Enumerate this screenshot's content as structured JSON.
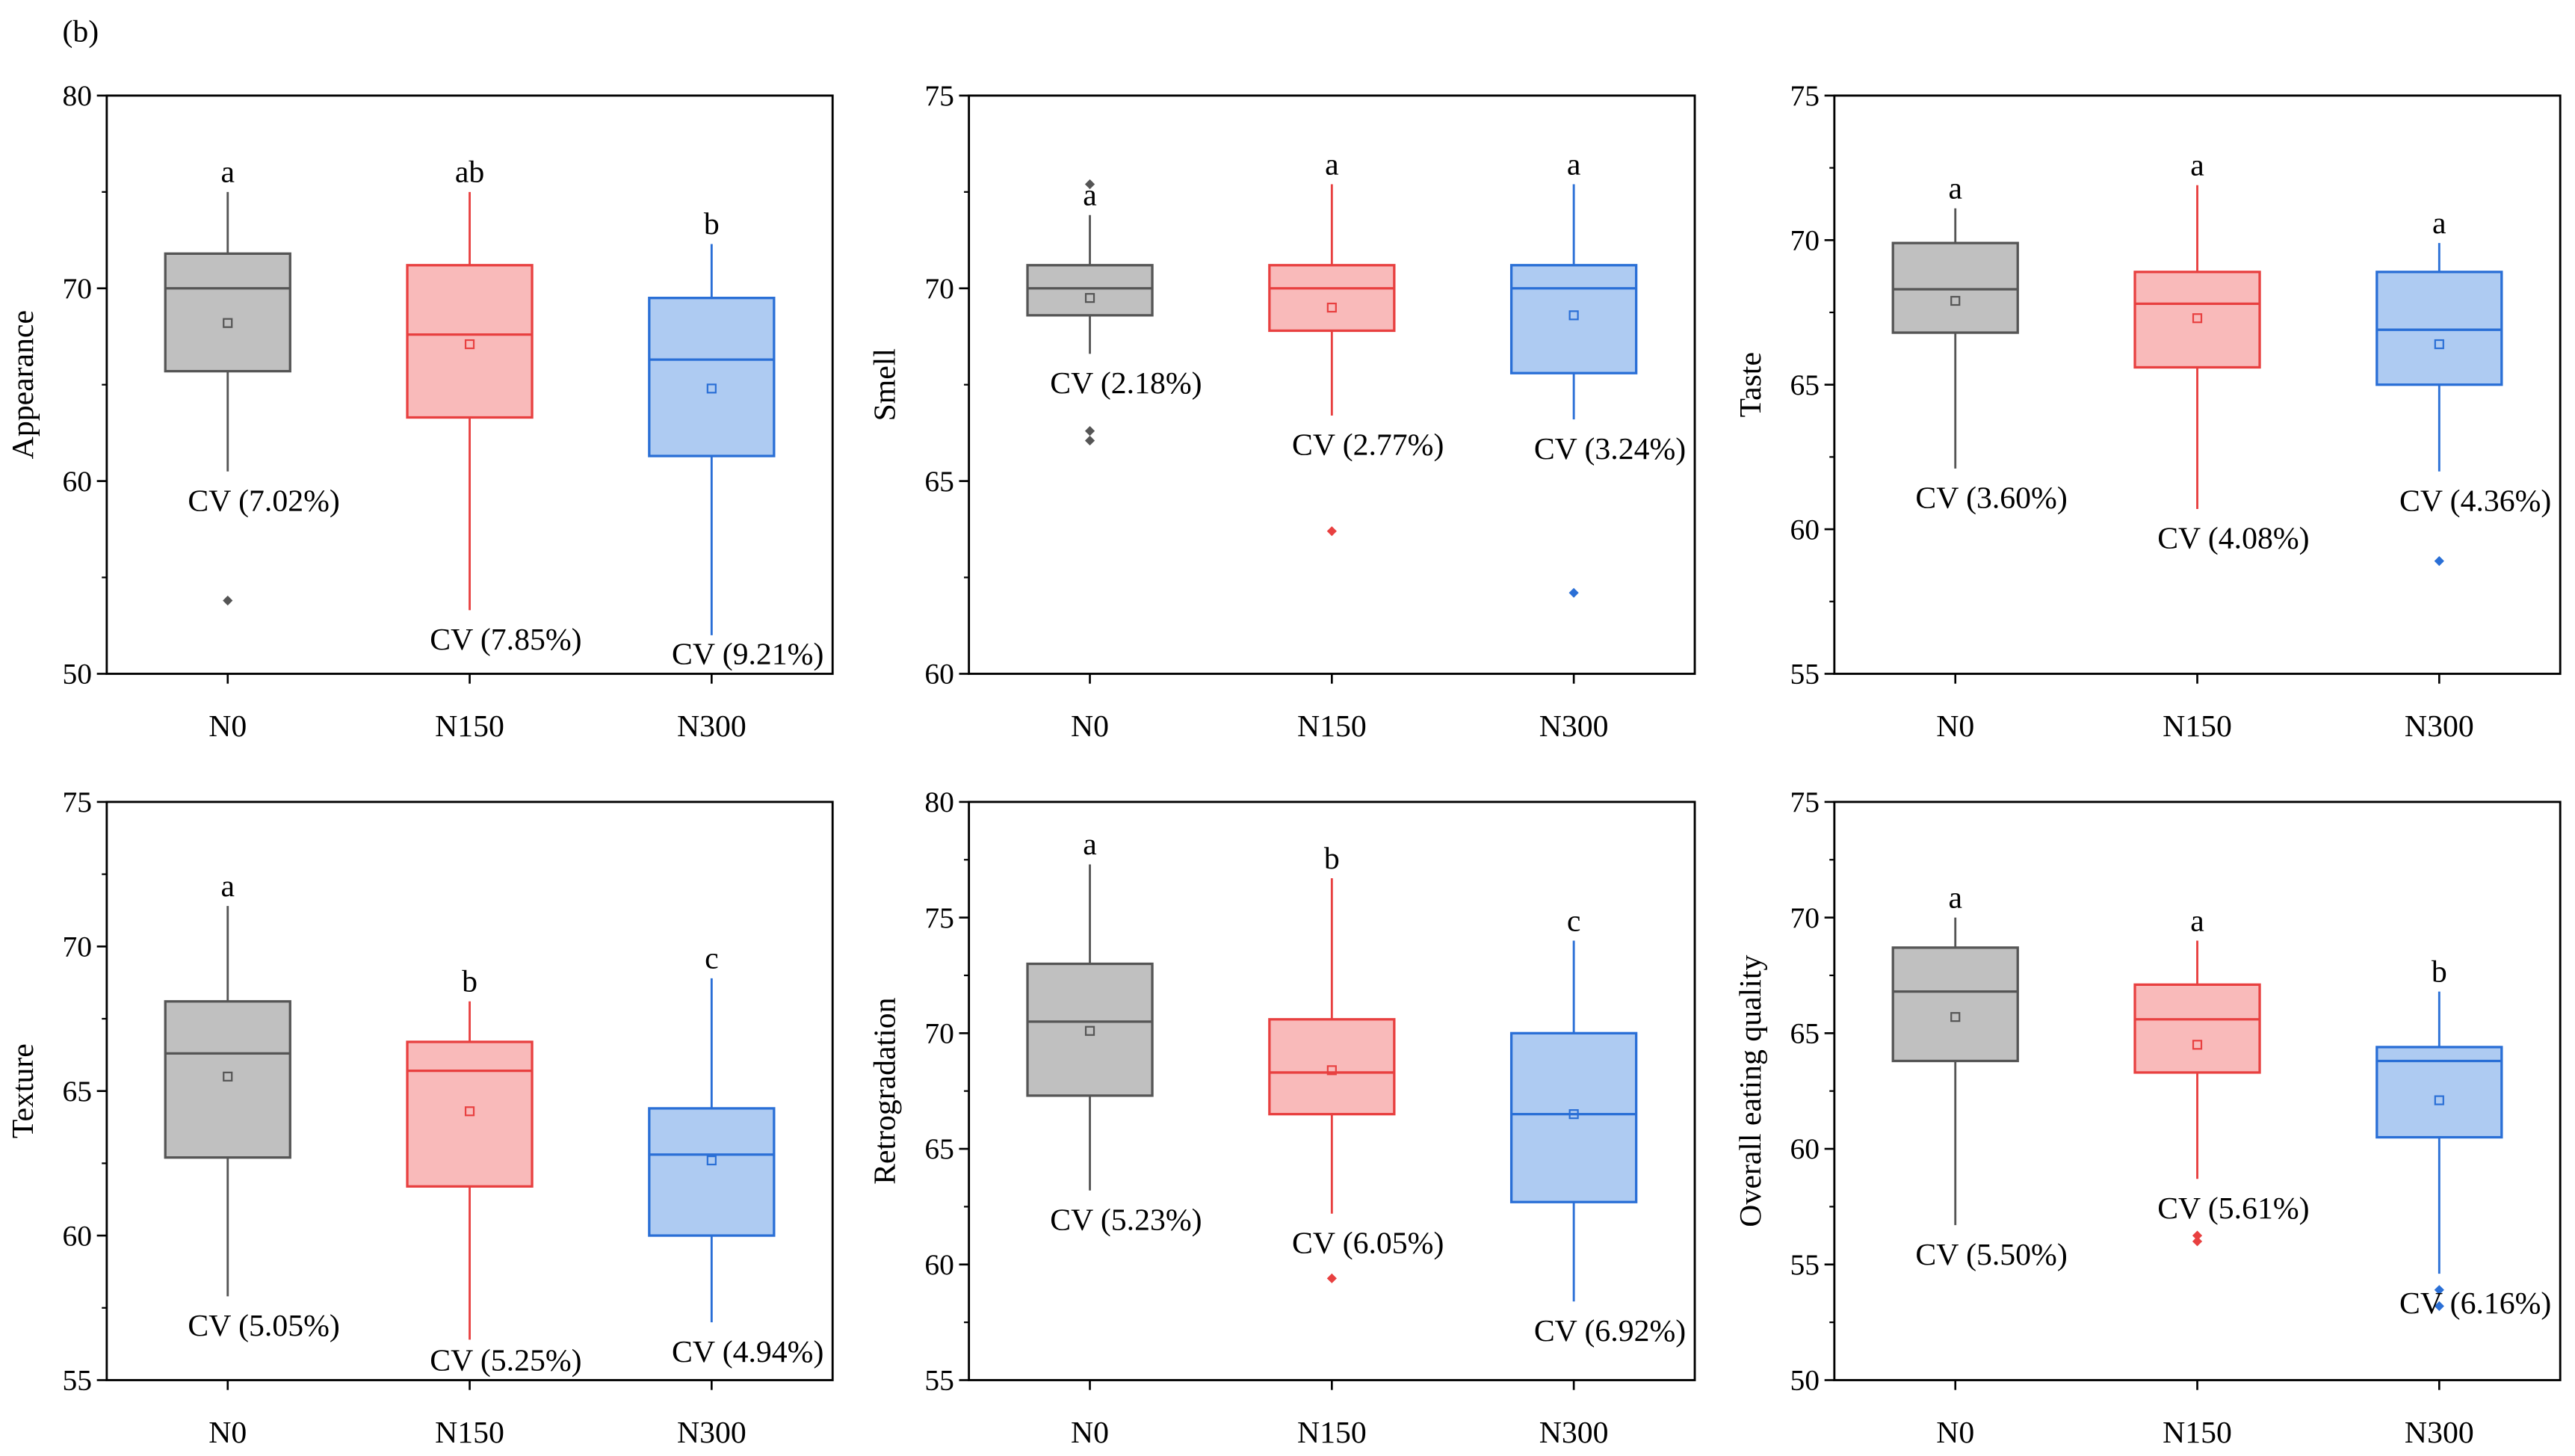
{
  "figure_label": "(b)",
  "colors": {
    "N0": {
      "fill": "#c0c0c0",
      "stroke": "#555555"
    },
    "N150": {
      "fill": "#f9baba",
      "stroke": "#e84040"
    },
    "N300": {
      "fill": "#aecbf2",
      "stroke": "#2a6fd6"
    }
  },
  "chart_data": [
    {
      "type": "box",
      "ylabel": "Appearance",
      "ylim": [
        50,
        80
      ],
      "yticks": [
        50,
        60,
        70,
        80
      ],
      "categories": [
        "N0",
        "N150",
        "N300"
      ],
      "boxes": [
        {
          "whisker_low": 60.5,
          "q1": 65.7,
          "median": 70.0,
          "mean": 68.2,
          "q3": 71.8,
          "whisker_high": 75.0,
          "outliers": [
            53.8
          ],
          "letter": "a",
          "cv": "CV (7.02%)"
        },
        {
          "whisker_low": 53.3,
          "q1": 63.3,
          "median": 67.6,
          "mean": 67.1,
          "q3": 71.2,
          "whisker_high": 75.0,
          "outliers": [],
          "letter": "ab",
          "cv": "CV (7.85%)"
        },
        {
          "whisker_low": 52.0,
          "q1": 61.3,
          "median": 66.3,
          "mean": 64.8,
          "q3": 69.5,
          "whisker_high": 72.3,
          "outliers": [],
          "letter": "b",
          "cv": "CV (9.21%)"
        }
      ]
    },
    {
      "type": "box",
      "ylabel": "Smell",
      "ylim": [
        60,
        75
      ],
      "yticks": [
        60,
        65,
        70,
        75
      ],
      "categories": [
        "N0",
        "N150",
        "N300"
      ],
      "boxes": [
        {
          "whisker_low": 68.3,
          "q1": 69.3,
          "median": 70.0,
          "mean": 69.75,
          "q3": 70.6,
          "whisker_high": 71.9,
          "outliers": [
            72.7,
            66.3,
            66.05
          ],
          "letter": "a",
          "cv": "CV (2.18%)"
        },
        {
          "whisker_low": 66.7,
          "q1": 68.9,
          "median": 70.0,
          "mean": 69.5,
          "q3": 70.6,
          "whisker_high": 72.7,
          "outliers": [
            63.7
          ],
          "letter": "a",
          "cv": "CV (2.77%)"
        },
        {
          "whisker_low": 66.6,
          "q1": 67.8,
          "median": 70.0,
          "mean": 69.3,
          "q3": 70.6,
          "whisker_high": 72.7,
          "outliers": [
            62.1
          ],
          "letter": "a",
          "cv": "CV (3.24%)"
        }
      ]
    },
    {
      "type": "box",
      "ylabel": "Taste",
      "ylim": [
        55,
        75
      ],
      "yticks": [
        55,
        60,
        65,
        70,
        75
      ],
      "categories": [
        "N0",
        "N150",
        "N300"
      ],
      "boxes": [
        {
          "whisker_low": 62.1,
          "q1": 66.8,
          "median": 68.3,
          "mean": 67.9,
          "q3": 69.9,
          "whisker_high": 71.1,
          "outliers": [],
          "letter": "a",
          "cv": "CV (3.60%)"
        },
        {
          "whisker_low": 60.7,
          "q1": 65.6,
          "median": 67.8,
          "mean": 67.3,
          "q3": 68.9,
          "whisker_high": 71.9,
          "outliers": [],
          "letter": "a",
          "cv": "CV (4.08%)"
        },
        {
          "whisker_low": 62.0,
          "q1": 65.0,
          "median": 66.9,
          "mean": 66.4,
          "q3": 68.9,
          "whisker_high": 69.9,
          "outliers": [
            58.9
          ],
          "letter": "a",
          "cv": "CV (4.36%)"
        }
      ]
    },
    {
      "type": "box",
      "ylabel": "Texture",
      "ylim": [
        55,
        75
      ],
      "yticks": [
        55,
        60,
        65,
        70,
        75
      ],
      "categories": [
        "N0",
        "N150",
        "N300"
      ],
      "boxes": [
        {
          "whisker_low": 57.9,
          "q1": 62.7,
          "median": 66.3,
          "mean": 65.5,
          "q3": 68.1,
          "whisker_high": 71.4,
          "outliers": [],
          "letter": "a",
          "cv": "CV (5.05%)"
        },
        {
          "whisker_low": 56.4,
          "q1": 61.7,
          "median": 65.7,
          "mean": 64.3,
          "q3": 66.7,
          "whisker_high": 68.1,
          "outliers": [],
          "letter": "b",
          "cv": "CV (5.25%)"
        },
        {
          "whisker_low": 57.0,
          "q1": 60.0,
          "median": 62.8,
          "mean": 62.6,
          "q3": 64.4,
          "whisker_high": 68.9,
          "outliers": [],
          "letter": "c",
          "cv": "CV (4.94%)"
        }
      ]
    },
    {
      "type": "box",
      "ylabel": "Retrogradation",
      "ylim": [
        55,
        80
      ],
      "yticks": [
        55,
        60,
        65,
        70,
        75,
        80
      ],
      "categories": [
        "N0",
        "N150",
        "N300"
      ],
      "boxes": [
        {
          "whisker_low": 63.2,
          "q1": 67.3,
          "median": 70.5,
          "mean": 70.1,
          "q3": 73.0,
          "whisker_high": 77.3,
          "outliers": [],
          "letter": "a",
          "cv": "CV (5.23%)"
        },
        {
          "whisker_low": 62.2,
          "q1": 66.5,
          "median": 68.3,
          "mean": 68.4,
          "q3": 70.6,
          "whisker_high": 76.7,
          "outliers": [
            59.4
          ],
          "letter": "b",
          "cv": "CV (6.05%)"
        },
        {
          "whisker_low": 58.4,
          "q1": 62.7,
          "median": 66.5,
          "mean": 66.5,
          "q3": 70.0,
          "whisker_high": 74.0,
          "outliers": [],
          "letter": "c",
          "cv": "CV (6.92%)"
        }
      ]
    },
    {
      "type": "box",
      "ylabel": "Overall eating quality",
      "ylim": [
        50,
        75
      ],
      "yticks": [
        50,
        55,
        60,
        65,
        70,
        75
      ],
      "categories": [
        "N0",
        "N150",
        "N300"
      ],
      "boxes": [
        {
          "whisker_low": 56.7,
          "q1": 63.8,
          "median": 66.8,
          "mean": 65.7,
          "q3": 68.7,
          "whisker_high": 70.0,
          "outliers": [],
          "letter": "a",
          "cv": "CV (5.50%)"
        },
        {
          "whisker_low": 58.7,
          "q1": 63.3,
          "median": 65.6,
          "mean": 64.5,
          "q3": 67.1,
          "whisker_high": 69.0,
          "outliers": [
            56.25,
            56.0
          ],
          "letter": "a",
          "cv": "CV (5.61%)"
        },
        {
          "whisker_low": 54.6,
          "q1": 60.5,
          "median": 63.8,
          "mean": 62.1,
          "q3": 64.4,
          "whisker_high": 66.8,
          "outliers": [
            53.9,
            53.2
          ],
          "letter": "b",
          "cv": "CV (6.16%)"
        }
      ]
    }
  ]
}
